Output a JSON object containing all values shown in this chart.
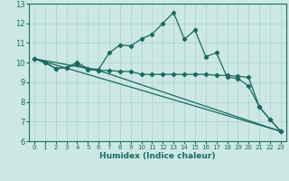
{
  "title": "",
  "xlabel": "Humidex (Indice chaleur)",
  "xlim": [
    -0.5,
    23.5
  ],
  "ylim": [
    6,
    13
  ],
  "yticks": [
    6,
    7,
    8,
    9,
    10,
    11,
    12,
    13
  ],
  "xticks": [
    0,
    1,
    2,
    3,
    4,
    5,
    6,
    7,
    8,
    9,
    10,
    11,
    12,
    13,
    14,
    15,
    16,
    17,
    18,
    19,
    20,
    21,
    22,
    23
  ],
  "bg_color": "#cce8e4",
  "line_color": "#1a6b5e",
  "grid_color": "#aad0cc",
  "line1_x": [
    0,
    1,
    2,
    3,
    4,
    5,
    6,
    7,
    8,
    9,
    10,
    11,
    12,
    13,
    14,
    15,
    16,
    17,
    18,
    19,
    20,
    21,
    22,
    23
  ],
  "line1_y": [
    10.2,
    10.0,
    9.7,
    9.75,
    10.0,
    9.7,
    9.65,
    10.5,
    10.9,
    10.85,
    11.2,
    11.45,
    12.0,
    12.55,
    11.2,
    11.65,
    10.3,
    10.5,
    9.25,
    9.2,
    8.8,
    7.75,
    7.1,
    6.5
  ],
  "line2_x": [
    0,
    1,
    2,
    3,
    4,
    5,
    6,
    23
  ],
  "line2_y": [
    10.2,
    10.0,
    9.7,
    9.75,
    9.9,
    9.65,
    9.6,
    6.5
  ],
  "line3_x": [
    0,
    6,
    7,
    8,
    9,
    10,
    11,
    12,
    13,
    14,
    15,
    16,
    17,
    18,
    19,
    20,
    21,
    22,
    23
  ],
  "line3_y": [
    10.2,
    9.6,
    9.6,
    9.55,
    9.55,
    9.4,
    9.4,
    9.4,
    9.4,
    9.4,
    9.4,
    9.4,
    9.35,
    9.35,
    9.3,
    9.25,
    7.75,
    7.1,
    6.5
  ],
  "line4_x": [
    0,
    23
  ],
  "line4_y": [
    10.2,
    6.5
  ]
}
